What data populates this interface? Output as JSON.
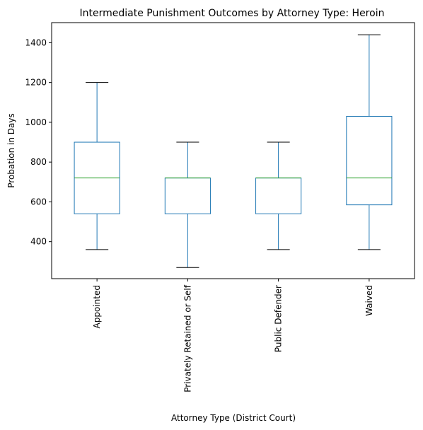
{
  "chart_data": {
    "type": "boxplot",
    "title": "Intermediate Punishment Outcomes by Attorney Type: Heroin",
    "xlabel": "Attorney Type (District Court)",
    "ylabel": "Probation in Days",
    "categories": [
      "Appointed",
      "Privately Retained or Self",
      "Public Defender",
      "Waived"
    ],
    "boxes": [
      {
        "category": "Appointed",
        "whisker_low": 360,
        "q1": 540,
        "median": 720,
        "q3": 900,
        "whisker_high": 1200
      },
      {
        "category": "Privately Retained or Self",
        "whisker_low": 270,
        "q1": 540,
        "median": 720,
        "q3": 720,
        "whisker_high": 900
      },
      {
        "category": "Public Defender",
        "whisker_low": 360,
        "q1": 540,
        "median": 720,
        "q3": 720,
        "whisker_high": 900
      },
      {
        "category": "Waived",
        "whisker_low": 360,
        "q1": 585,
        "median": 720,
        "q3": 1030,
        "whisker_high": 1440
      }
    ],
    "yticks": [
      400,
      600,
      800,
      1000,
      1200,
      1400
    ],
    "ylim": [
      214,
      1501
    ],
    "grid": false,
    "legend": "none",
    "colors": {
      "box": "#1f77b4",
      "median": "#2ca02c",
      "whisker": "#1f77b4",
      "cap": "#000000",
      "axes": "#000000"
    }
  }
}
